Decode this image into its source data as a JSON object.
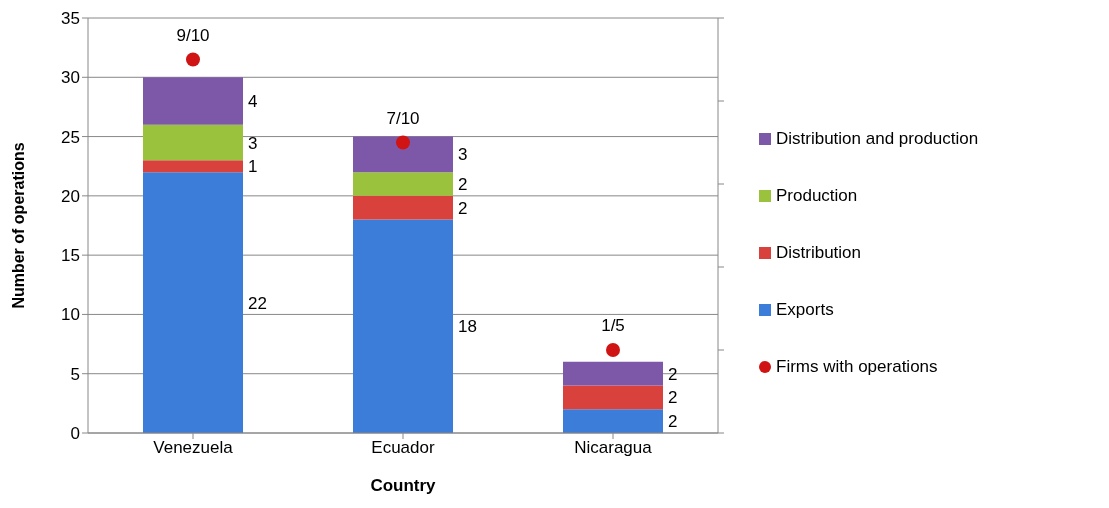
{
  "chart_data": {
    "type": "bar",
    "stacked": true,
    "xlabel": "Country",
    "ylabel": "Number of operations",
    "categories": [
      "Venezuela",
      "Ecuador",
      "Nicaragua"
    ],
    "series": [
      {
        "name": "Exports",
        "color": "#3b7dd8",
        "values": [
          22,
          18,
          2
        ],
        "value_labels": [
          "22",
          "18",
          "2"
        ]
      },
      {
        "name": "Distribution",
        "color": "#d9413d",
        "values": [
          1,
          2,
          2
        ],
        "value_labels": [
          "1",
          "2",
          "2"
        ]
      },
      {
        "name": "Production",
        "color": "#9bc23c",
        "values": [
          3,
          2,
          0
        ],
        "value_labels": [
          "3",
          "2",
          null
        ]
      },
      {
        "name": "Distribution and production",
        "color": "#7e58a8",
        "values": [
          4,
          3,
          2
        ],
        "value_labels": [
          "4",
          "3",
          "2"
        ]
      },
      {
        "name": "Firms with operations",
        "type": "scatter",
        "axis": "y2",
        "marker": "circle",
        "color": "#d01414",
        "values": [
          0.9,
          0.7,
          0.2
        ],
        "value_labels": [
          "9/10",
          "7/10",
          "1/5"
        ]
      }
    ],
    "ylim": [
      0,
      35
    ],
    "yticks": [
      0,
      5,
      10,
      15,
      20,
      25,
      30,
      35
    ],
    "y2lim": [
      0,
      1
    ],
    "y2ticks": [
      {
        "value": 0,
        "label": null
      },
      {
        "value": 0.2,
        "label": null
      },
      {
        "value": 0.4,
        "label": null
      },
      {
        "value": 0.6,
        "label": null
      },
      {
        "value": 0.8,
        "label": null
      },
      {
        "value": 1,
        "label": null
      }
    ],
    "grid": "y",
    "legend": "right"
  }
}
